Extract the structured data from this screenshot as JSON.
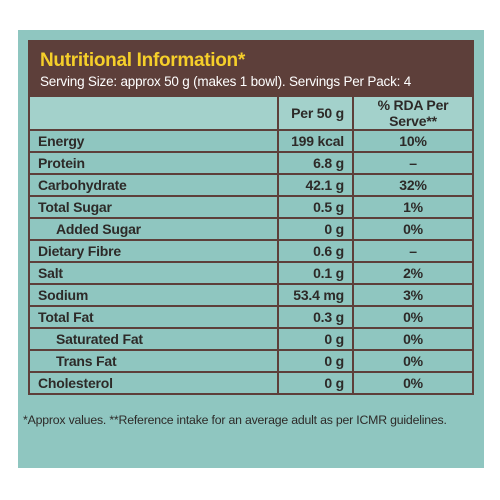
{
  "header": {
    "title": "Nutritional Information*",
    "subtitle": "Serving Size: approx 50 g (makes 1 bowl). Servings Per Pack: 4"
  },
  "table": {
    "columns": [
      "",
      "Per 50 g",
      "% RDA Per Serve**"
    ],
    "rows": [
      [
        "Energy",
        "199 kcal",
        "10%"
      ],
      [
        "Protein",
        "6.8 g",
        "–"
      ],
      [
        "Carbohydrate",
        "42.1 g",
        "32%"
      ],
      [
        "Total Sugar",
        "0.5 g",
        "1%"
      ],
      [
        "Added Sugar",
        "0 g",
        "0%"
      ],
      [
        "Dietary Fibre",
        "0.6 g",
        "–"
      ],
      [
        "Salt",
        "0.1 g",
        "2%"
      ],
      [
        "Sodium",
        "53.4 mg",
        "3%"
      ],
      [
        "Total Fat",
        "0.3 g",
        "0%"
      ],
      [
        "Saturated Fat",
        "0 g",
        "0%"
      ],
      [
        "Trans Fat",
        "0 g",
        "0%"
      ],
      [
        "Cholesterol",
        "0 g",
        "0%"
      ]
    ]
  },
  "footnote": "*Approx values. **Reference intake for an average adult as per ICMR guidelines."
}
